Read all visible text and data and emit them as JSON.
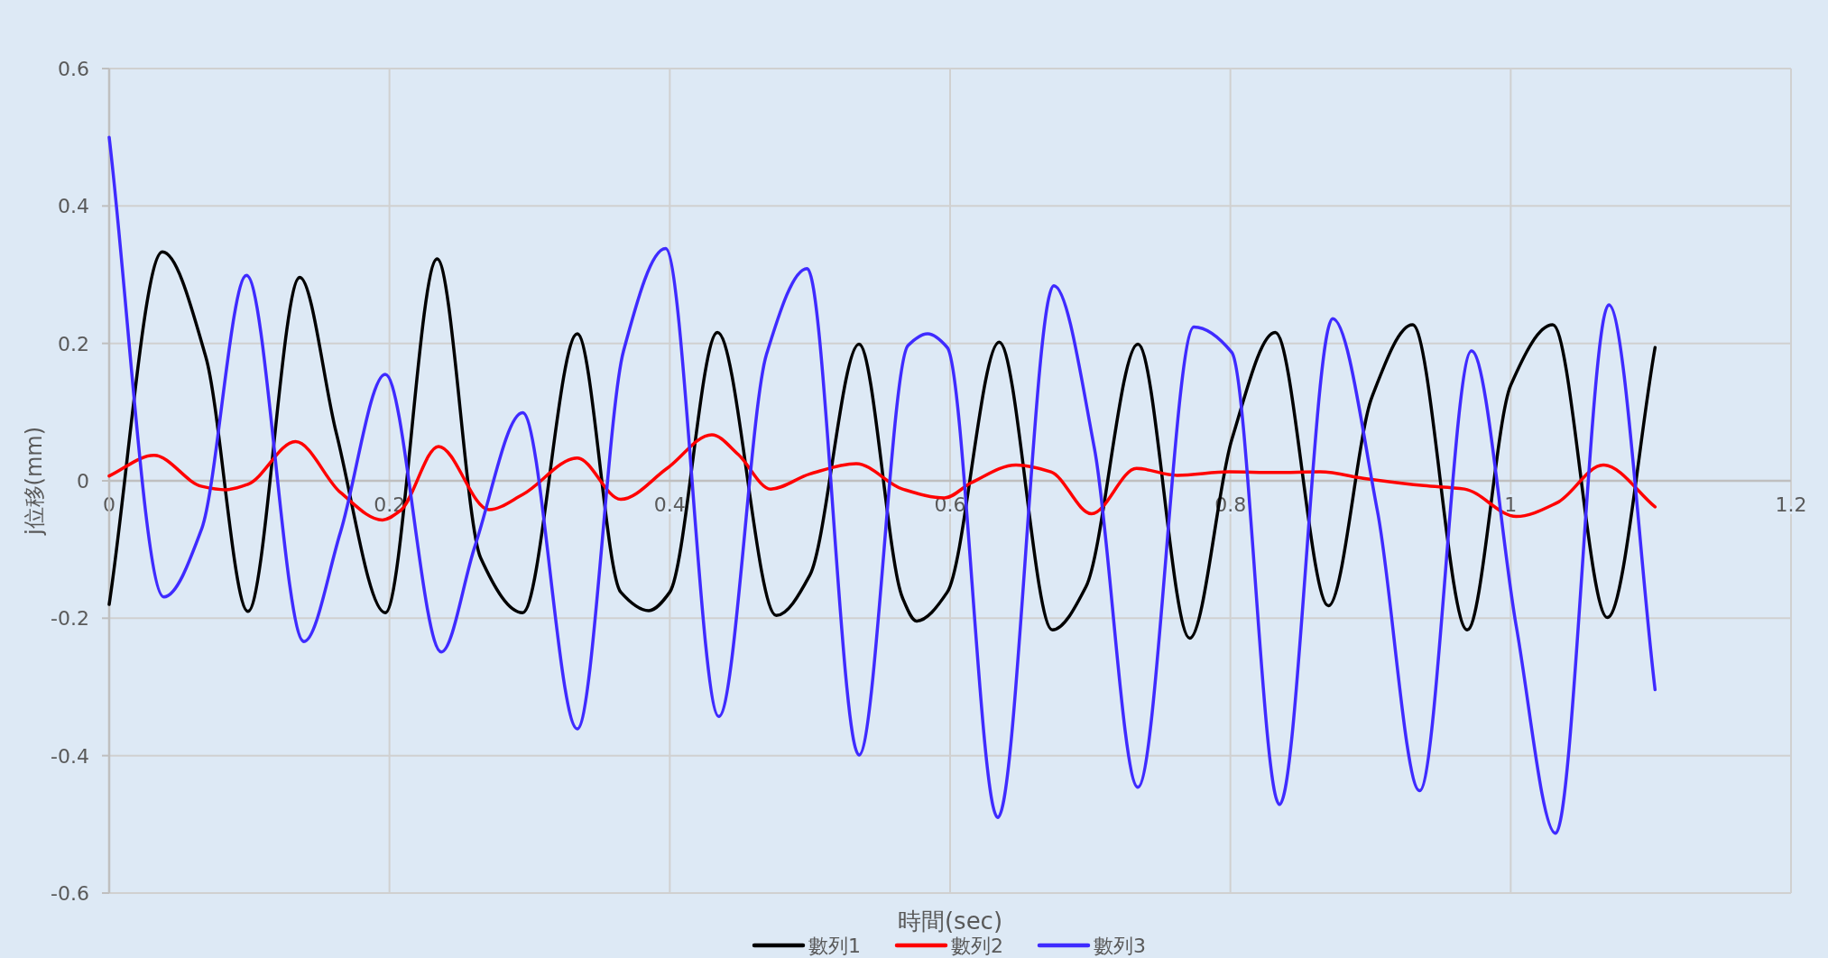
{
  "chart_data": {
    "type": "line",
    "xlabel": "時間(sec)",
    "ylabel": "j位移(mm)",
    "xlim": [
      0,
      1.2
    ],
    "ylim": [
      -0.6,
      0.6
    ],
    "xticks": [
      0,
      0.2,
      0.4,
      0.6,
      0.8,
      1,
      1.2
    ],
    "yticks": [
      -0.6,
      -0.4,
      -0.2,
      0,
      0.2,
      0.4,
      0.6
    ],
    "grid": true,
    "legend": "bottom",
    "marker": "none",
    "line_style": "solid",
    "series": [
      {
        "name": "數列1",
        "color": "#000000",
        "x": [
          0,
          0.038,
          0.069,
          0.099,
          0.136,
          0.162,
          0.197,
          0.234,
          0.265,
          0.295,
          0.334,
          0.365,
          0.385,
          0.4,
          0.434,
          0.476,
          0.5,
          0.535,
          0.566,
          0.576,
          0.598,
          0.635,
          0.673,
          0.697,
          0.734,
          0.771,
          0.801,
          0.832,
          0.87,
          0.901,
          0.93,
          0.969,
          1.0,
          1.03,
          1.069,
          1.103
        ],
        "values": [
          -0.18,
          0.333,
          0.18,
          -0.19,
          0.296,
          0.07,
          -0.192,
          0.323,
          -0.112,
          -0.192,
          0.214,
          -0.162,
          -0.189,
          -0.162,
          0.216,
          -0.196,
          -0.137,
          0.199,
          -0.17,
          -0.204,
          -0.162,
          0.202,
          -0.217,
          -0.154,
          0.199,
          -0.229,
          0.06,
          0.216,
          -0.182,
          0.122,
          0.227,
          -0.217,
          0.139,
          0.227,
          -0.199,
          0.194
        ]
      },
      {
        "name": "數列2",
        "color": "#ff0000",
        "x": [
          0,
          0.032,
          0.066,
          0.083,
          0.099,
          0.133,
          0.165,
          0.195,
          0.208,
          0.235,
          0.271,
          0.295,
          0.334,
          0.365,
          0.398,
          0.43,
          0.449,
          0.472,
          0.5,
          0.533,
          0.566,
          0.596,
          0.615,
          0.647,
          0.672,
          0.701,
          0.733,
          0.762,
          0.799,
          0.832,
          0.864,
          0.897,
          0.938,
          0.967,
          1.004,
          1.033,
          1.066,
          1.103
        ],
        "values": [
          0.007,
          0.037,
          -0.008,
          -0.013,
          -0.005,
          0.057,
          -0.017,
          -0.057,
          -0.043,
          0.05,
          -0.042,
          -0.02,
          0.033,
          -0.027,
          0.018,
          0.067,
          0.038,
          -0.012,
          0.01,
          0.025,
          -0.012,
          -0.025,
          -0.003,
          0.023,
          0.013,
          -0.048,
          0.018,
          0.008,
          0.013,
          0.012,
          0.013,
          0.003,
          -0.007,
          -0.012,
          -0.052,
          -0.032,
          0.023,
          -0.038
        ]
      },
      {
        "name": "數列3",
        "color": "#3f2bff",
        "x": [
          0,
          0.039,
          0.066,
          0.098,
          0.139,
          0.165,
          0.197,
          0.237,
          0.261,
          0.295,
          0.334,
          0.367,
          0.397,
          0.435,
          0.469,
          0.498,
          0.535,
          0.57,
          0.584,
          0.598,
          0.634,
          0.674,
          0.703,
          0.734,
          0.774,
          0.801,
          0.835,
          0.873,
          0.905,
          0.935,
          0.972,
          1.004,
          1.032,
          1.07,
          1.103
        ],
        "values": [
          0.5,
          -0.169,
          -0.07,
          0.299,
          -0.234,
          -0.075,
          0.155,
          -0.249,
          -0.095,
          0.099,
          -0.361,
          0.189,
          0.338,
          -0.343,
          0.184,
          0.309,
          -0.399,
          0.197,
          0.214,
          0.194,
          -0.49,
          0.284,
          0.047,
          -0.446,
          0.224,
          0.187,
          -0.471,
          0.236,
          -0.045,
          -0.451,
          0.189,
          -0.212,
          -0.513,
          0.256,
          -0.304
        ]
      }
    ]
  }
}
